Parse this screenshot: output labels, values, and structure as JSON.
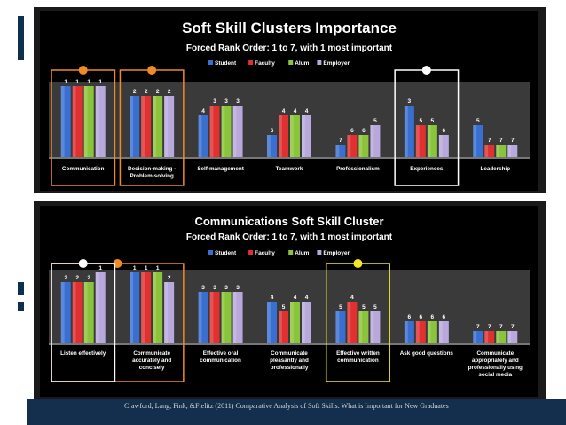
{
  "colors": {
    "student": "#3a6fd2",
    "faculty": "#e03030",
    "alum": "#8ac43a",
    "employer": "#b8a8dc",
    "highlight_orange": "#f08a24",
    "highlight_white": "#ffffff",
    "highlight_yellow": "#f3e62a",
    "footer": "#142e4e"
  },
  "footer": {
    "citation": "Crawford, Lang, Fink, &Fielitz (2011) Comparative Analysis of Soft Skills: What is Important for New Graduates"
  },
  "chart_data": [
    {
      "type": "bar",
      "title": "Soft Skill Clusters Importance",
      "subtitle": "Forced Rank Order:  1 to 7, with 1 most important",
      "legend": [
        "Student",
        "Faculty",
        "Alum",
        "Employer"
      ],
      "legend_position": "top-center",
      "categories": [
        [
          "Communication"
        ],
        [
          "Decision-making -",
          "Problem-solving"
        ],
        [
          "Self-management"
        ],
        [
          "Teamwork"
        ],
        [
          "Professionalism"
        ],
        [
          "Experiences"
        ],
        [
          "Leadership"
        ]
      ],
      "series": [
        {
          "name": "Student",
          "values": [
            1,
            2,
            4,
            6,
            7,
            3,
            5
          ]
        },
        {
          "name": "Faculty",
          "values": [
            1,
            2,
            3,
            4,
            6,
            5,
            7
          ]
        },
        {
          "name": "Alum",
          "values": [
            1,
            2,
            3,
            4,
            6,
            5,
            7
          ]
        },
        {
          "name": "Employer",
          "values": [
            1,
            2,
            3,
            4,
            5,
            6,
            7
          ]
        }
      ],
      "highlights": [
        {
          "category_index": 0,
          "span": 1,
          "color": "orange",
          "marker": "dot"
        },
        {
          "category_index": 1,
          "span": 1,
          "color": "orange",
          "marker": "dot"
        },
        {
          "category_index": 5,
          "span": 1,
          "color": "white",
          "marker": "dot"
        }
      ],
      "scale": "rank (1 = tallest bar)",
      "grid": false
    },
    {
      "type": "bar",
      "title": "Communications Soft Skill Cluster",
      "subtitle": "Forced Rank Order: 1 to 7, with 1 most important",
      "legend": [
        "Student",
        "Faculty",
        "Alum",
        "Employer"
      ],
      "legend_position": "top-center",
      "categories": [
        [
          "Listen effectively"
        ],
        [
          "Communicate",
          "accurately and",
          "concisely"
        ],
        [
          "Effective oral",
          "communication"
        ],
        [
          "Communicate",
          "pleasantly and",
          "professionally"
        ],
        [
          "Effective written",
          "communication"
        ],
        [
          "Ask good questions"
        ],
        [
          "Communicate",
          "appropriately and",
          "professionally using",
          "social media"
        ]
      ],
      "series": [
        {
          "name": "Student",
          "values": [
            2,
            1,
            3,
            4,
            5,
            6,
            7
          ]
        },
        {
          "name": "Faculty",
          "values": [
            2,
            1,
            3,
            5,
            4,
            6,
            7
          ]
        },
        {
          "name": "Alum",
          "values": [
            2,
            1,
            3,
            4,
            5,
            6,
            7
          ]
        },
        {
          "name": "Employer",
          "values": [
            1,
            2,
            3,
            4,
            5,
            6,
            7
          ]
        }
      ],
      "highlights": [
        {
          "category_index": 0,
          "span": 2,
          "color": "orange",
          "marker": "dot"
        },
        {
          "category_index": 0,
          "span": 1,
          "color": "white",
          "marker": "dot"
        },
        {
          "category_index": 4,
          "span": 1,
          "color": "yellow",
          "marker": "dot"
        }
      ],
      "scale": "rank (1 = tallest bar)",
      "grid": false
    }
  ]
}
